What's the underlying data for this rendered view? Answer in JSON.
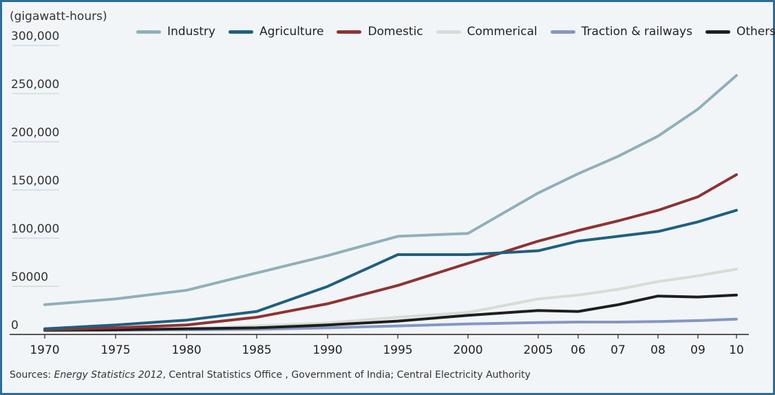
{
  "chart_data": {
    "type": "line",
    "unit_label": "(gigawatt-hours)",
    "categories": [
      "1970",
      "1975",
      "1980",
      "1985",
      "1990",
      "1995",
      "2000",
      "2005",
      "06",
      "07",
      "08",
      "09",
      "10"
    ],
    "ylim": [
      0,
      300000
    ],
    "y_ticks": [
      "0",
      "50000",
      "100,000",
      "150,000",
      "200,000",
      "250,000",
      "300,000"
    ],
    "y_tick_values": [
      0,
      50000,
      100000,
      150000,
      200000,
      250000,
      300000
    ],
    "grid": true,
    "legend_position": "top",
    "series": [
      {
        "name": "Industry",
        "color": "#8fb0ba",
        "values": [
          28000,
          34000,
          43000,
          61000,
          79000,
          99000,
          102000,
          144000,
          164000,
          182000,
          203000,
          231000,
          266000
        ]
      },
      {
        "name": "Agriculture",
        "color": "#1f5f7f",
        "values": [
          3000,
          7000,
          12000,
          21000,
          47000,
          80000,
          80000,
          84000,
          94000,
          99000,
          104000,
          114000,
          126000
        ]
      },
      {
        "name": "Domestic",
        "color": "#8e3232",
        "values": [
          2000,
          4000,
          7000,
          15000,
          29000,
          48000,
          71000,
          94000,
          105000,
          115000,
          126000,
          140000,
          163000
        ]
      },
      {
        "name": "Commerical",
        "color": "#d4ded4",
        "values": [
          1000,
          2000,
          3000,
          6000,
          9000,
          15000,
          20000,
          34000,
          38000,
          44000,
          52000,
          58000,
          65000
        ]
      },
      {
        "name": "Traction & railways",
        "color": "#8396c4",
        "values": [
          1000,
          1500,
          2000,
          2500,
          4000,
          6000,
          8000,
          9500,
          10000,
          10000,
          10500,
          11500,
          13000
        ]
      },
      {
        "name": "Others",
        "color": "#1e1e1e",
        "values": [
          1500,
          2000,
          3000,
          4000,
          7000,
          11000,
          17000,
          22000,
          21000,
          28000,
          37000,
          36000,
          38000
        ]
      }
    ]
  },
  "source": {
    "prefix": "Sources: ",
    "italic": "Energy Statistics 2012",
    "rest": ", Central Statistics Office , Government of India; Central Electricity Authority"
  }
}
